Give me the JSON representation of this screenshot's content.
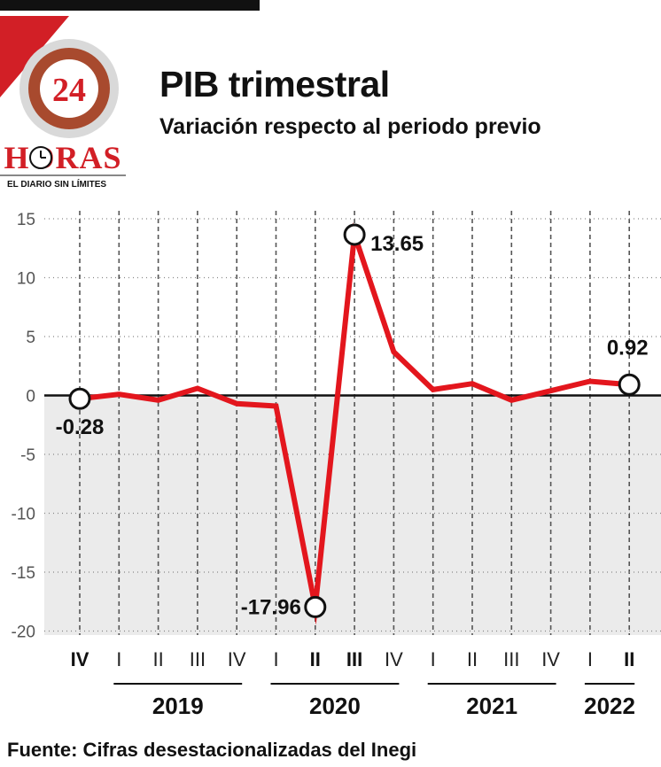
{
  "header": {
    "title": "PIB trimestral",
    "subtitle": "Variación respecto al periodo previo"
  },
  "logo": {
    "number": "24",
    "name": "HORAS",
    "tagline": "EL DIARIO SIN LÍMITES"
  },
  "source": "Fuente: Cifras desestacionalizadas del Inegi",
  "colors": {
    "line": "#e3161d",
    "negative_area": "#ebebeb",
    "zero_line": "#111111",
    "brand_red": "#d21f26"
  },
  "chart_data": {
    "type": "line",
    "title": "PIB trimestral",
    "subtitle": "Variación respecto al periodo previo",
    "ylim": [
      -20,
      15
    ],
    "yticks": [
      15,
      10,
      5,
      0,
      -5,
      -10,
      -15,
      -20
    ],
    "grid": true,
    "x": [
      "IV",
      "I",
      "II",
      "III",
      "IV",
      "I",
      "II",
      "III",
      "IV",
      "I",
      "II",
      "III",
      "IV",
      "I",
      "II"
    ],
    "x_bold": [
      true,
      false,
      false,
      false,
      false,
      false,
      true,
      true,
      false,
      false,
      false,
      false,
      false,
      false,
      true
    ],
    "years": [
      {
        "label": "2019",
        "from": 1,
        "to": 4
      },
      {
        "label": "2020",
        "from": 5,
        "to": 8
      },
      {
        "label": "2021",
        "from": 9,
        "to": 12
      },
      {
        "label": "2022",
        "from": 13,
        "to": 14
      }
    ],
    "series": [
      {
        "values": [
          -0.28,
          0.1,
          -0.4,
          0.6,
          -0.7,
          -0.9,
          -17.96,
          13.65,
          3.7,
          0.5,
          1.0,
          -0.4,
          0.4,
          1.2,
          0.92
        ]
      }
    ],
    "highlighted": [
      {
        "index": 0,
        "label": "-0.28"
      },
      {
        "index": 6,
        "label": "-17.96"
      },
      {
        "index": 7,
        "label": "13.65"
      },
      {
        "index": 14,
        "label": "0.92"
      }
    ]
  }
}
